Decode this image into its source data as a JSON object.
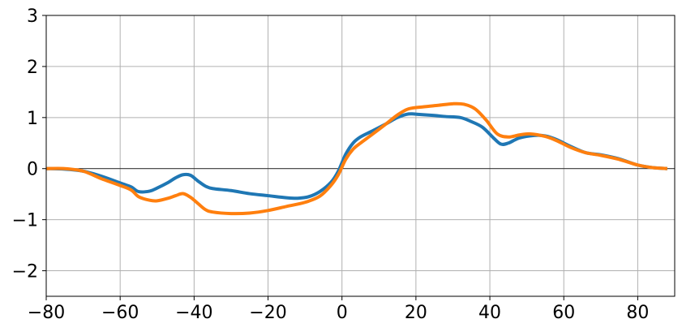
{
  "chart_data": {
    "type": "line",
    "title": "",
    "xlabel": "",
    "ylabel": "",
    "xlim": [
      -80,
      90
    ],
    "ylim": [
      -2.5,
      3
    ],
    "grid": true,
    "legend": "none",
    "x_ticks": [
      -80,
      -60,
      -40,
      -20,
      0,
      20,
      40,
      60,
      80
    ],
    "y_ticks": [
      -2,
      -1,
      0,
      1,
      2,
      3
    ],
    "x_tick_labels": [
      "−80",
      "−60",
      "−40",
      "−20",
      "0",
      "20",
      "40",
      "60",
      "80"
    ],
    "y_tick_labels": [
      "−2",
      "−1",
      "0",
      "1",
      "2",
      "3"
    ],
    "reference_line_y": 0,
    "series": [
      {
        "color": "#1f77b4",
        "points": [
          [
            -80,
            0.0
          ],
          [
            -75,
            -0.01
          ],
          [
            -70,
            -0.05
          ],
          [
            -65,
            -0.15
          ],
          [
            -60,
            -0.28
          ],
          [
            -57,
            -0.36
          ],
          [
            -55,
            -0.45
          ],
          [
            -52,
            -0.44
          ],
          [
            -50,
            -0.38
          ],
          [
            -47,
            -0.27
          ],
          [
            -45,
            -0.18
          ],
          [
            -43,
            -0.12
          ],
          [
            -41,
            -0.13
          ],
          [
            -39,
            -0.24
          ],
          [
            -37,
            -0.34
          ],
          [
            -35,
            -0.39
          ],
          [
            -30,
            -0.43
          ],
          [
            -25,
            -0.49
          ],
          [
            -20,
            -0.53
          ],
          [
            -15,
            -0.57
          ],
          [
            -12,
            -0.58
          ],
          [
            -9,
            -0.55
          ],
          [
            -6,
            -0.45
          ],
          [
            -3,
            -0.27
          ],
          [
            -1,
            -0.05
          ],
          [
            1,
            0.28
          ],
          [
            3,
            0.5
          ],
          [
            5,
            0.62
          ],
          [
            8,
            0.73
          ],
          [
            12,
            0.88
          ],
          [
            15,
            1.0
          ],
          [
            18,
            1.07
          ],
          [
            21,
            1.06
          ],
          [
            25,
            1.04
          ],
          [
            28,
            1.02
          ],
          [
            32,
            1.0
          ],
          [
            35,
            0.92
          ],
          [
            38,
            0.81
          ],
          [
            41,
            0.6
          ],
          [
            43,
            0.48
          ],
          [
            45,
            0.5
          ],
          [
            48,
            0.6
          ],
          [
            52,
            0.65
          ],
          [
            55,
            0.64
          ],
          [
            58,
            0.57
          ],
          [
            62,
            0.43
          ],
          [
            66,
            0.31
          ],
          [
            70,
            0.27
          ],
          [
            75,
            0.19
          ],
          [
            80,
            0.07
          ],
          [
            84,
            0.02
          ],
          [
            88,
            0.0
          ]
        ]
      },
      {
        "color": "#ff7f0e",
        "points": [
          [
            -80,
            0.0
          ],
          [
            -75,
            0.0
          ],
          [
            -70,
            -0.05
          ],
          [
            -65,
            -0.2
          ],
          [
            -60,
            -0.33
          ],
          [
            -57,
            -0.42
          ],
          [
            -55,
            -0.55
          ],
          [
            -52,
            -0.62
          ],
          [
            -50,
            -0.63
          ],
          [
            -47,
            -0.58
          ],
          [
            -45,
            -0.53
          ],
          [
            -43,
            -0.49
          ],
          [
            -41,
            -0.56
          ],
          [
            -39,
            -0.68
          ],
          [
            -37,
            -0.8
          ],
          [
            -35,
            -0.85
          ],
          [
            -30,
            -0.88
          ],
          [
            -25,
            -0.87
          ],
          [
            -20,
            -0.82
          ],
          [
            -15,
            -0.74
          ],
          [
            -10,
            -0.66
          ],
          [
            -6,
            -0.54
          ],
          [
            -3,
            -0.33
          ],
          [
            -1,
            -0.12
          ],
          [
            1,
            0.18
          ],
          [
            3,
            0.38
          ],
          [
            5,
            0.5
          ],
          [
            8,
            0.66
          ],
          [
            12,
            0.88
          ],
          [
            15,
            1.05
          ],
          [
            18,
            1.17
          ],
          [
            22,
            1.21
          ],
          [
            26,
            1.24
          ],
          [
            30,
            1.27
          ],
          [
            33,
            1.26
          ],
          [
            36,
            1.17
          ],
          [
            39,
            0.95
          ],
          [
            42,
            0.68
          ],
          [
            45,
            0.62
          ],
          [
            48,
            0.66
          ],
          [
            51,
            0.68
          ],
          [
            55,
            0.63
          ],
          [
            58,
            0.55
          ],
          [
            62,
            0.41
          ],
          [
            66,
            0.31
          ],
          [
            70,
            0.26
          ],
          [
            75,
            0.18
          ],
          [
            80,
            0.07
          ],
          [
            84,
            0.02
          ],
          [
            88,
            0.0
          ]
        ]
      }
    ]
  }
}
